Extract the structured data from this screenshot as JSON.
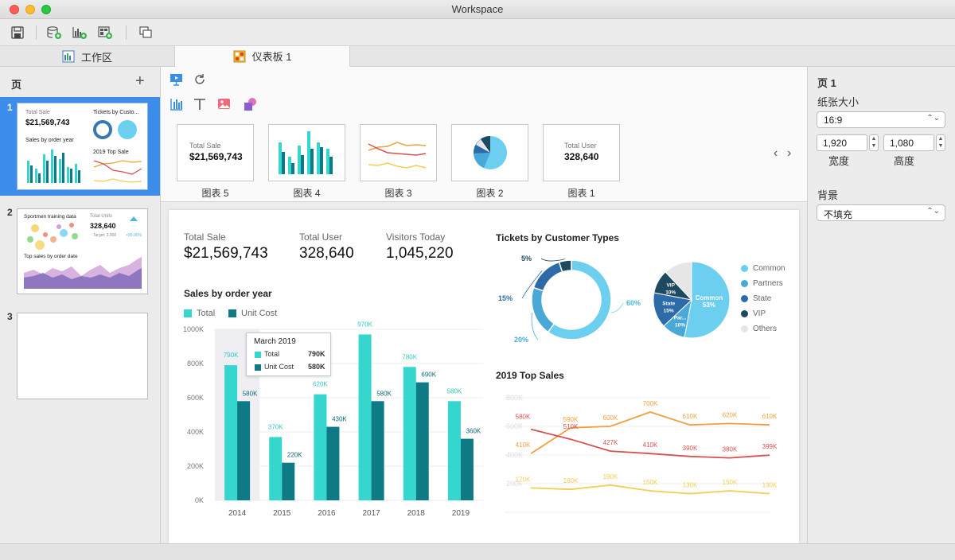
{
  "window": {
    "title": "Workspace"
  },
  "tabs": [
    {
      "label": "工作区",
      "icon": "workspace-icon"
    },
    {
      "label": "仪表板 1",
      "icon": "dashboard-icon"
    }
  ],
  "left_panel": {
    "title": "页",
    "pages": [
      {
        "number": "1",
        "thumb": {
          "total_sale_label": "Total Sale",
          "total_sale_value": "$21,569,743",
          "tickets_label": "Tickets by Custo...",
          "sales_label": "Sales by order year",
          "top_sale_label": "2019 Top Sale"
        }
      },
      {
        "number": "2",
        "thumb": {
          "sportmen_label": "Sportmen training data",
          "total_units_label": "Total Units",
          "total_units_value": "328,640",
          "target_label": "Target: 3,000",
          "change_label": "+95.00%",
          "top_sales_label": "Top sales by order date"
        }
      },
      {
        "number": "3"
      }
    ]
  },
  "center": {
    "cards": [
      {
        "label": "图表 5",
        "kpi_label": "Total Sale",
        "kpi_value": "$21,569,743"
      },
      {
        "label": "图表 4"
      },
      {
        "label": "图表 3"
      },
      {
        "label": "图表 2"
      },
      {
        "label": "图表 1",
        "kpi_label": "Total User",
        "kpi_value": "328,640"
      }
    ]
  },
  "dashboard": {
    "kpis": [
      {
        "label": "Total Sale",
        "value": "$21,569,743"
      },
      {
        "label": "Total User",
        "value": "328,640"
      },
      {
        "label": "Visitors Today",
        "value": "1,045,220"
      }
    ],
    "bar_title": "Sales by order year",
    "tickets_title": "Tickets by Customer Types",
    "line_title": "2019 Top Sales",
    "tooltip": {
      "title": "March 2019",
      "rows": [
        {
          "name": "Total",
          "value": "790K"
        },
        {
          "name": "Unit Cost",
          "value": "580K"
        }
      ]
    },
    "pie_legend": [
      "Common",
      "Partners",
      "State",
      "VIP",
      "Others"
    ]
  },
  "right_panel": {
    "page_title": "页 1",
    "paper_size_label": "纸张大小",
    "paper_size_value": "16:9",
    "width_value": "1,920",
    "height_value": "1,080",
    "width_label": "宽度",
    "height_label": "高度",
    "background_label": "背景",
    "background_value": "不填充"
  },
  "colors": {
    "teal": "#35d6cd",
    "dark_teal": "#0d7a86",
    "selection": "#3c8dea",
    "orange": "#f0a040",
    "red": "#d85050",
    "yellow": "#f5cd50"
  },
  "chart_data": [
    {
      "type": "bar",
      "title": "Sales by order year",
      "categories": [
        "2014",
        "2015",
        "2016",
        "2017",
        "2018",
        "2019"
      ],
      "series": [
        {
          "name": "Total",
          "values": [
            790,
            370,
            620,
            970,
            780,
            580
          ],
          "labels": [
            "790K",
            "370K",
            "620K",
            "970K",
            "780K",
            "580K"
          ]
        },
        {
          "name": "Unit Cost",
          "values": [
            580,
            220,
            430,
            580,
            690,
            360
          ],
          "labels": [
            "580K",
            "220K",
            "430K",
            "580K",
            "690K",
            "360K"
          ]
        }
      ],
      "ylim": [
        0,
        1000
      ],
      "yticks": [
        "0K",
        "200K",
        "400K",
        "600K",
        "800K",
        "1000K"
      ],
      "legend": "top-left"
    },
    {
      "type": "pie",
      "title": "Tickets by Customer Types",
      "subtype": "donut",
      "values": [
        60,
        20,
        15,
        5
      ],
      "labels": [
        "60%",
        "20%",
        "15%",
        "5%"
      ],
      "colors": [
        "#6dcff0",
        "#4aa8d8",
        "#2d6aa8",
        "#1d4a60"
      ]
    },
    {
      "type": "pie",
      "title": "Tickets by Customer Types",
      "categories": [
        "Common",
        "Partners",
        "State",
        "VIP",
        "Others"
      ],
      "values": [
        53,
        10,
        15,
        10,
        12
      ],
      "labels": [
        "Common\n53%",
        "Par...\n10%",
        "State\n15%",
        "VIP\n10%",
        ""
      ],
      "colors": [
        "#6dcff0",
        "#4aa8d8",
        "#2d6aa8",
        "#1d4a60",
        "#e6e6e6"
      ],
      "legend": "right"
    },
    {
      "type": "line",
      "title": "2019 Top Sales",
      "x_points": 7,
      "series": [
        {
          "values": [
            410,
            590,
            600,
            700,
            610,
            620,
            610
          ],
          "labels": [
            "410K",
            "590K",
            "600K",
            "700K",
            "610K",
            "620K",
            "610K"
          ],
          "color": "#f0a040"
        },
        {
          "values": [
            580,
            510,
            427,
            410,
            390,
            380,
            399
          ],
          "labels": [
            "580K",
            "510K",
            "427K",
            "410K",
            "390K",
            "380K",
            "399K"
          ],
          "color": "#d85050"
        },
        {
          "values": [
            170,
            160,
            190,
            150,
            130,
            150,
            130
          ],
          "labels": [
            "170K",
            "160K",
            "190K",
            "150K",
            "130K",
            "150K",
            "130K"
          ],
          "color": "#f5cd50"
        }
      ],
      "ylim": [
        0,
        800
      ],
      "yticks": [
        "",
        "200K",
        "400K",
        "600K",
        "800K"
      ]
    }
  ]
}
